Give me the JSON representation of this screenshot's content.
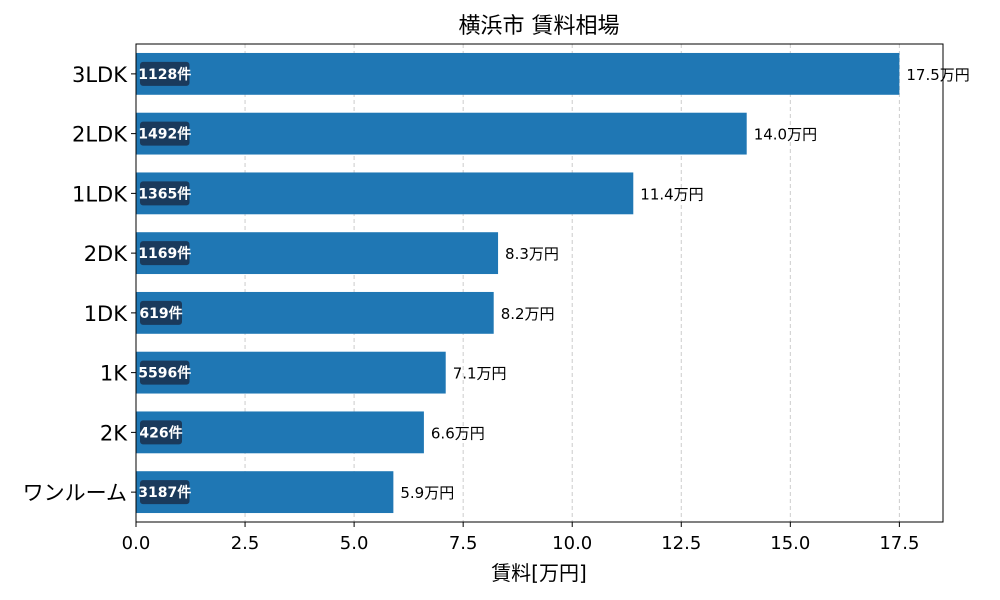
{
  "chart_data": {
    "type": "bar",
    "orientation": "horizontal",
    "title": "横浜市 賃料相場",
    "xlabel": "賃料[万円]",
    "ylabel": "",
    "categories": [
      "3LDK",
      "2LDK",
      "1LDK",
      "2DK",
      "1DK",
      "1K",
      "2K",
      "ワンルーム"
    ],
    "values": [
      17.5,
      14.0,
      11.4,
      8.3,
      8.2,
      7.1,
      6.6,
      5.9
    ],
    "value_labels": [
      "17.5万円",
      "14.0万円",
      "11.4万円",
      "8.3万円",
      "8.2万円",
      "7.1万円",
      "6.6万円",
      "5.9万円"
    ],
    "counts": [
      "1128件",
      "1492件",
      "1365件",
      "1169件",
      "619件",
      "5596件",
      "426件",
      "3187件"
    ],
    "xlim": [
      0,
      18.5
    ],
    "xticks": [
      0.0,
      2.5,
      5.0,
      7.5,
      10.0,
      12.5,
      15.0,
      17.5
    ],
    "xtick_labels": [
      "0.0",
      "2.5",
      "5.0",
      "7.5",
      "10.0",
      "12.5",
      "15.0",
      "17.5"
    ],
    "grid": "x",
    "colors": {
      "bar": "#1f77b4",
      "count_badge": "#1a3a5c",
      "grid": "#cccccc"
    }
  }
}
